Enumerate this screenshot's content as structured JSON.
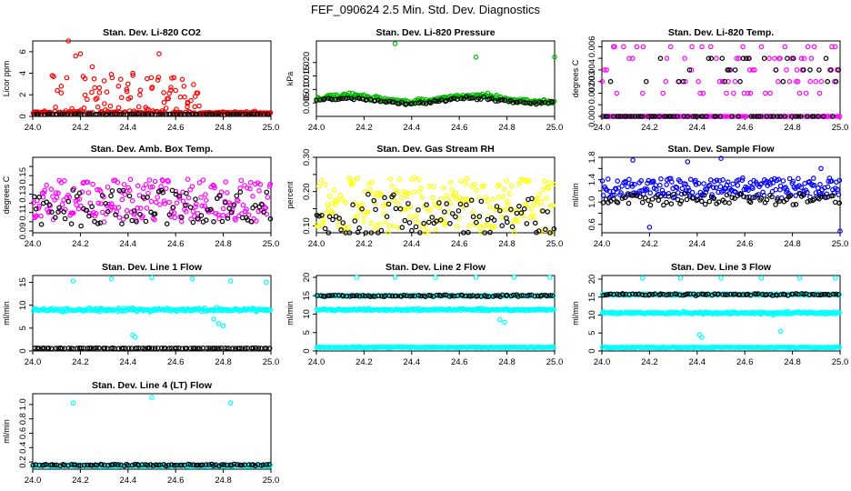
{
  "figure": {
    "title": "FEF_090624  2.5 Min. Std. Dev. Diagnostics"
  },
  "colors": {
    "red": "#ff0000",
    "green": "#00bb00",
    "magenta": "#ff00ff",
    "yellow": "#ffff00",
    "blue": "#0000ff",
    "cyan": "#00ffff",
    "black": "#000000"
  },
  "chart_data": [
    {
      "type": "scatter",
      "title": "Stan. Dev. Li-820 CO2",
      "ylabel": "Licor ppm",
      "xlabel": "",
      "xlim": [
        24.0,
        25.0
      ],
      "ylim": [
        0,
        7
      ],
      "xticks": [
        24.0,
        24.2,
        24.4,
        24.6,
        24.8,
        25.0
      ],
      "yticks": [
        0,
        2,
        4,
        6
      ],
      "tick_labels_y": [
        "0",
        "2",
        "4",
        "6"
      ],
      "series": [
        {
          "color": "red",
          "pattern": "spiky",
          "base": 0.3,
          "spread": 0.2,
          "spikes": [
            [
              24.05,
              0.5
            ],
            [
              24.12,
              2.8
            ],
            [
              24.15,
              7.0
            ],
            [
              24.18,
              5.6
            ],
            [
              24.2,
              5.8
            ],
            [
              24.22,
              3.5
            ],
            [
              24.25,
              4.6
            ],
            [
              24.28,
              2.2
            ],
            [
              24.3,
              3.3
            ],
            [
              24.33,
              3.9
            ],
            [
              24.36,
              2.8
            ],
            [
              24.4,
              3.0
            ],
            [
              24.42,
              4.0
            ],
            [
              24.45,
              2.0
            ],
            [
              24.48,
              3.5
            ],
            [
              24.5,
              2.6
            ],
            [
              24.53,
              5.8
            ],
            [
              24.55,
              2.2
            ],
            [
              24.58,
              2.7
            ],
            [
              24.6,
              2.4
            ],
            [
              24.62,
              1.8
            ],
            [
              24.65,
              1.2
            ],
            [
              24.68,
              0.9
            ]
          ]
        },
        {
          "color": "black",
          "pattern": "flat",
          "base": 0.2,
          "spread": 0.05
        }
      ]
    },
    {
      "type": "scatter",
      "title": "Stan. Dev. Li-820 Pressure",
      "ylabel": "kPa",
      "xlabel": "",
      "xlim": [
        24.0,
        25.0
      ],
      "ylim": [
        0.0,
        0.028
      ],
      "xticks": [
        24.0,
        24.2,
        24.4,
        24.6,
        24.8,
        25.0
      ],
      "yticks": [
        0.005,
        0.01,
        0.015,
        0.02
      ],
      "tick_labels_y": [
        "0.005",
        "0.010",
        "0.015",
        "0.020"
      ],
      "series": [
        {
          "color": "green",
          "pattern": "wave",
          "base": 0.0065,
          "amp": 0.0012,
          "spread": 0.0015,
          "outliers": [
            [
              24.33,
              0.027
            ],
            [
              24.67,
              0.022
            ],
            [
              25.0,
              0.022
            ]
          ]
        },
        {
          "color": "black",
          "pattern": "wave",
          "base": 0.0058,
          "amp": 0.001,
          "spread": 0.0008
        }
      ]
    },
    {
      "type": "scatter",
      "title": "Stan. Dev. Li-820 Temp.",
      "ylabel": "degrees C",
      "xlabel": "",
      "xlim": [
        24.0,
        25.0
      ],
      "ylim": [
        0.0,
        0.0065
      ],
      "xticks": [
        24.0,
        24.2,
        24.4,
        24.6,
        24.8,
        25.0
      ],
      "yticks": [
        0.0,
        0.001,
        0.002,
        0.003,
        0.004,
        0.005,
        0.006
      ],
      "tick_labels_y": [
        "0.000",
        "",
        "0.002",
        "0.003",
        "0.004",
        "",
        "0.006"
      ],
      "series": [
        {
          "color": "magenta",
          "pattern": "levels",
          "levels": [
            0.0,
            0.002,
            0.003,
            0.004,
            0.005,
            0.006
          ]
        },
        {
          "color": "black",
          "pattern": "levels",
          "levels": [
            0.0,
            0.003,
            0.004,
            0.005
          ]
        }
      ]
    },
    {
      "type": "scatter",
      "title": "Stan. Dev. Amb. Box Temp.",
      "ylabel": "degrees C",
      "xlabel": "",
      "xlim": [
        24.0,
        25.0
      ],
      "ylim": [
        0.088,
        0.17
      ],
      "xticks": [
        24.0,
        24.2,
        24.4,
        24.6,
        24.8,
        25.0
      ],
      "yticks": [
        0.09,
        0.1,
        0.11,
        0.12,
        0.13,
        0.14,
        0.15,
        0.16
      ],
      "tick_labels_y": [
        "0.09",
        "",
        "0.11",
        "",
        "0.13",
        "",
        "0.15",
        ""
      ],
      "series": [
        {
          "color": "magenta",
          "pattern": "cloud",
          "base": 0.123,
          "spread": 0.026
        },
        {
          "color": "black",
          "pattern": "cloud",
          "base": 0.115,
          "spread": 0.022
        }
      ]
    },
    {
      "type": "scatter",
      "title": "Stan. Dev. Gas Stream RH",
      "ylabel": "percent",
      "xlabel": "",
      "xlim": [
        24.0,
        25.0
      ],
      "ylim": [
        0.08,
        0.3
      ],
      "xticks": [
        24.0,
        24.2,
        24.4,
        24.6,
        24.8,
        25.0
      ],
      "yticks": [
        0.1,
        0.15,
        0.2,
        0.25,
        0.3
      ],
      "tick_labels_y": [
        "0.10",
        "",
        "0.20",
        "",
        "0.30"
      ],
      "series": [
        {
          "color": "yellow",
          "pattern": "cloud",
          "base": 0.16,
          "spread": 0.09
        },
        {
          "color": "black",
          "pattern": "cloud",
          "base": 0.13,
          "spread": 0.07
        }
      ]
    },
    {
      "type": "scatter",
      "title": "Stan. Dev. Sample Flow",
      "ylabel": "ml/min",
      "xlabel": "",
      "xlim": [
        24.0,
        25.0
      ],
      "ylim": [
        0.45,
        1.8
      ],
      "xticks": [
        24.0,
        24.2,
        24.4,
        24.6,
        24.8,
        25.0
      ],
      "yticks": [
        0.6,
        0.8,
        1.0,
        1.2,
        1.4,
        1.6,
        1.8
      ],
      "tick_labels_y": [
        "0.6",
        "",
        "1.0",
        "",
        "1.4",
        "",
        "1.8"
      ],
      "series": [
        {
          "color": "blue",
          "pattern": "cloud",
          "base": 1.25,
          "spread": 0.2,
          "outliers": [
            [
              24.13,
              1.75
            ],
            [
              24.2,
              0.55
            ],
            [
              24.36,
              1.72
            ],
            [
              24.5,
              1.78
            ],
            [
              24.92,
              1.6
            ],
            [
              25.0,
              0.48
            ]
          ]
        },
        {
          "color": "black",
          "pattern": "cloud",
          "base": 1.05,
          "spread": 0.12
        }
      ]
    },
    {
      "type": "scatter",
      "title": "Stan. Dev. Line 1 Flow",
      "ylabel": "ml/min",
      "xlabel": "",
      "xlim": [
        24.0,
        25.0
      ],
      "ylim": [
        0,
        16.5
      ],
      "xticks": [
        24.0,
        24.2,
        24.4,
        24.6,
        24.8,
        25.0
      ],
      "yticks": [
        0,
        5,
        10,
        15
      ],
      "tick_labels_y": [
        "0",
        "5",
        "10",
        "15"
      ],
      "series": [
        {
          "color": "cyan",
          "pattern": "band",
          "base": 9.0,
          "spread": 0.6,
          "outliers": [
            [
              24.17,
              15.3
            ],
            [
              24.33,
              15.8
            ],
            [
              24.5,
              16.0
            ],
            [
              24.67,
              15.8
            ],
            [
              24.83,
              15.3
            ],
            [
              24.98,
              15.0
            ],
            [
              24.42,
              3.5
            ],
            [
              24.43,
              3.0
            ],
            [
              24.76,
              7.0
            ],
            [
              24.78,
              6.0
            ],
            [
              24.8,
              5.5
            ]
          ]
        },
        {
          "color": "black",
          "pattern": "flat",
          "base": 0.6,
          "spread": 0.1
        }
      ]
    },
    {
      "type": "scatter",
      "title": "Stan. Dev. Line 2 Flow",
      "ylabel": "ml/min",
      "xlabel": "",
      "xlim": [
        24.0,
        25.0
      ],
      "ylim": [
        0,
        20.5
      ],
      "xticks": [
        24.0,
        24.2,
        24.4,
        24.6,
        24.8,
        25.0
      ],
      "yticks": [
        0,
        5,
        10,
        15,
        20
      ],
      "tick_labels_y": [
        "0",
        "5",
        "10",
        "15",
        "20"
      ],
      "series": [
        {
          "color": "cyan",
          "pattern": "band",
          "base": 11.2,
          "spread": 0.5,
          "outliers": [
            [
              24.17,
              20.0
            ],
            [
              24.33,
              20.0
            ],
            [
              24.5,
              20.0
            ],
            [
              24.67,
              20.0
            ],
            [
              24.83,
              20.0
            ],
            [
              24.98,
              20.0
            ],
            [
              24.77,
              8.5
            ],
            [
              24.79,
              7.8
            ]
          ]
        },
        {
          "color": "cyan",
          "pattern": "flat",
          "base": 1.0,
          "spread": 0.2
        },
        {
          "color": "cyan",
          "pattern": "flat",
          "base": 15.0,
          "spread": 0.3
        },
        {
          "color": "black",
          "pattern": "flat",
          "base": 15.0,
          "spread": 0.4
        }
      ]
    },
    {
      "type": "scatter",
      "title": "Stan. Dev. Line 3 Flow",
      "ylabel": "ml/min",
      "xlabel": "",
      "xlim": [
        24.0,
        25.0
      ],
      "ylim": [
        0,
        21
      ],
      "xticks": [
        24.0,
        24.2,
        24.4,
        24.6,
        24.8,
        25.0
      ],
      "yticks": [
        0,
        5,
        10,
        15,
        20
      ],
      "tick_labels_y": [
        "0",
        "5",
        "10",
        "15",
        "20"
      ],
      "series": [
        {
          "color": "cyan",
          "pattern": "band",
          "base": 10.6,
          "spread": 0.5,
          "outliers": [
            [
              24.17,
              20.3
            ],
            [
              24.33,
              20.3
            ],
            [
              24.5,
              20.3
            ],
            [
              24.67,
              20.3
            ],
            [
              24.83,
              20.3
            ],
            [
              24.98,
              20.3
            ],
            [
              24.41,
              4.5
            ],
            [
              24.42,
              3.8
            ],
            [
              24.72,
              10.0
            ],
            [
              24.75,
              5.5
            ]
          ]
        },
        {
          "color": "cyan",
          "pattern": "flat",
          "base": 1.0,
          "spread": 0.2
        },
        {
          "color": "cyan",
          "pattern": "flat",
          "base": 15.7,
          "spread": 0.3
        },
        {
          "color": "black",
          "pattern": "flat",
          "base": 15.7,
          "spread": 0.4
        }
      ]
    },
    {
      "type": "scatter",
      "title": "Stan. Dev. Line 4 (LT) Flow",
      "ylabel": "ml/min",
      "xlabel": "",
      "xlim": [
        24.0,
        25.0
      ],
      "ylim": [
        0.1,
        1.15
      ],
      "xticks": [
        24.0,
        24.2,
        24.4,
        24.6,
        24.8,
        25.0
      ],
      "yticks": [
        0.2,
        0.4,
        0.6,
        0.8,
        1.0
      ],
      "tick_labels_y": [
        "0.2",
        "0.4",
        "0.6",
        "0.8",
        "1.0"
      ],
      "series": [
        {
          "color": "cyan",
          "pattern": "flat",
          "base": 0.15,
          "spread": 0.02,
          "outliers": [
            [
              24.17,
              1.02
            ],
            [
              24.5,
              1.1
            ],
            [
              24.83,
              1.02
            ]
          ]
        },
        {
          "color": "black",
          "pattern": "flat",
          "base": 0.16,
          "spread": 0.02
        }
      ]
    }
  ]
}
